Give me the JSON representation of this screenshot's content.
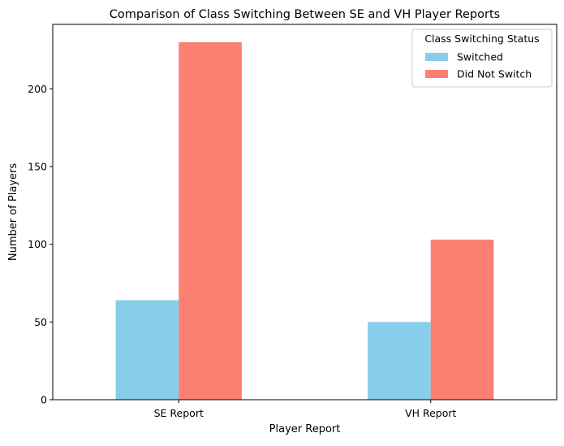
{
  "chart_data": {
    "type": "bar",
    "title": "Comparison of Class Switching Between SE and VH Player Reports",
    "xlabel": "Player Report",
    "ylabel": "Number of Players",
    "categories": [
      "SE Report",
      "VH Report"
    ],
    "series": [
      {
        "name": "Switched",
        "values": [
          64,
          50
        ],
        "color": "#87CEEB"
      },
      {
        "name": "Did Not Switch",
        "values": [
          230,
          103
        ],
        "color": "#FA8072"
      }
    ],
    "ylim": [
      0,
      241.5
    ],
    "yticks": [
      0,
      50,
      100,
      150,
      200
    ],
    "legend": {
      "title": "Class Switching Status",
      "position": "top-right"
    },
    "grid": false
  }
}
